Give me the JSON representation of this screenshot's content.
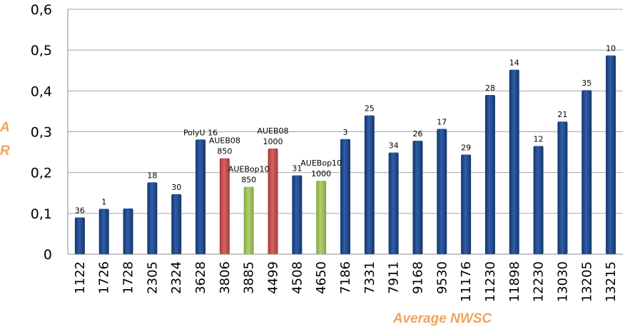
{
  "chart_data": {
    "type": "bar",
    "title": "",
    "xlabel": "Average NWSC",
    "ylabel_lines": [
      "A",
      "R"
    ],
    "ylim": [
      0,
      0.6
    ],
    "yticks": [
      {
        "value": 0,
        "label": "0"
      },
      {
        "value": 0.1,
        "label": "0,1"
      },
      {
        "value": 0.2,
        "label": "0,2"
      },
      {
        "value": 0.3,
        "label": "0,3"
      },
      {
        "value": 0.4,
        "label": "0,4"
      },
      {
        "value": 0.5,
        "label": "0,5"
      },
      {
        "value": 0.6,
        "label": "0,6"
      }
    ],
    "grid": true,
    "colors": {
      "blue": "#1f4888",
      "red": "#c0504d",
      "green": "#9bbb59",
      "label": "#f0a35e"
    },
    "bars": [
      {
        "category": "1122",
        "value": 0.09,
        "label": [
          "36"
        ],
        "color": "blue"
      },
      {
        "category": "1726",
        "value": 0.111,
        "label": [
          "1"
        ],
        "color": "blue"
      },
      {
        "category": "1728",
        "value": 0.112,
        "label": [],
        "color": "blue"
      },
      {
        "category": "2305",
        "value": 0.176,
        "label": [
          "18"
        ],
        "color": "blue"
      },
      {
        "category": "2324",
        "value": 0.147,
        "label": [
          "30"
        ],
        "color": "blue"
      },
      {
        "category": "3628",
        "value": 0.281,
        "label": [
          "PolyU 16"
        ],
        "color": "blue"
      },
      {
        "category": "3806",
        "value": 0.235,
        "label": [
          "AUEB08",
          "850"
        ],
        "color": "red"
      },
      {
        "category": "3885",
        "value": 0.165,
        "label": [
          "AUEBop10",
          "850"
        ],
        "color": "green"
      },
      {
        "category": "4499",
        "value": 0.259,
        "label": [
          "AUEB08",
          "1000"
        ],
        "color": "red"
      },
      {
        "category": "4508",
        "value": 0.193,
        "label": [
          "31"
        ],
        "color": "blue"
      },
      {
        "category": "4650",
        "value": 0.18,
        "label": [
          "AUEBop10",
          "1000"
        ],
        "color": "green"
      },
      {
        "category": "7186",
        "value": 0.282,
        "label": [
          "3"
        ],
        "color": "blue"
      },
      {
        "category": "7331",
        "value": 0.34,
        "label": [
          "25"
        ],
        "color": "blue"
      },
      {
        "category": "7911",
        "value": 0.249,
        "label": [
          "34"
        ],
        "color": "blue"
      },
      {
        "category": "9168",
        "value": 0.278,
        "label": [
          "26"
        ],
        "color": "blue"
      },
      {
        "category": "9530",
        "value": 0.307,
        "label": [
          "17"
        ],
        "color": "blue"
      },
      {
        "category": "11176",
        "value": 0.244,
        "label": [
          "29"
        ],
        "color": "blue"
      },
      {
        "category": "11230",
        "value": 0.39,
        "label": [
          "28"
        ],
        "color": "blue"
      },
      {
        "category": "11898",
        "value": 0.452,
        "label": [
          "14"
        ],
        "color": "blue"
      },
      {
        "category": "12230",
        "value": 0.265,
        "label": [
          "12"
        ],
        "color": "blue"
      },
      {
        "category": "13030",
        "value": 0.325,
        "label": [
          "21"
        ],
        "color": "blue"
      },
      {
        "category": "13205",
        "value": 0.402,
        "label": [
          "35"
        ],
        "color": "blue"
      },
      {
        "category": "13215",
        "value": 0.487,
        "label": [
          "10"
        ],
        "color": "blue"
      }
    ]
  }
}
